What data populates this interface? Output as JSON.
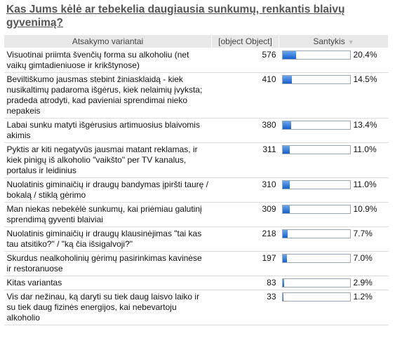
{
  "title": "Kas Jums kėlė ar tebekelia daugiausia sunkumų, renkantis blaivų gyvenimą?",
  "headers": {
    "option": "Atsakymo variantai",
    "count": "[object Object]",
    "ratio": "Santykis"
  },
  "sort_icon": "triangle-down-icon",
  "bar_color": "#1f6fd6",
  "chart_data": {
    "type": "table",
    "columns": [
      "Atsakymo variantai",
      "[object Object]",
      "Santykis"
    ],
    "rows": [
      {
        "label": "Visuotinai priimta švenčių forma su alkoholiu (net vaikų gimtadieniuose ir krikštynose)",
        "count": 576,
        "percent": 20.4,
        "percent_text": "20.4%"
      },
      {
        "label": "Beviltiškumo jausmas stebint žiniasklaidą - kiek nusikaltimų padaroma išgėrus, kiek nelaimių įvyksta; pradeda atrodyti, kad pavieniai sprendimai nieko nepakeis",
        "count": 410,
        "percent": 14.5,
        "percent_text": "14.5%"
      },
      {
        "label": "Labai sunku matyti išgėrusius artimuosius blaivomis akimis",
        "count": 380,
        "percent": 13.4,
        "percent_text": "13.4%"
      },
      {
        "label": "Pyktis ar kiti negatyvūs jausmai matant reklamas, ir kiek pinigų iš alkoholio \"vaikšto\" per TV kanalus, portalus ir leidinius",
        "count": 311,
        "percent": 11.0,
        "percent_text": "11.0%"
      },
      {
        "label": "Nuolatinis giminaičių ir draugų bandymas įpiršti taurę / bokalą / stiklą gėrimo",
        "count": 310,
        "percent": 11.0,
        "percent_text": "11.0%"
      },
      {
        "label": "Man niekas nebekėlė sunkumų, kai priėmiau galutinį sprendimą gyventi blaiviai",
        "count": 309,
        "percent": 10.9,
        "percent_text": "10.9%"
      },
      {
        "label": "Nuolatinis giminaičių ir draugų klausinėjimas \"tai kas tau atsitiko?\" / \"ką čia išsigalvoji?\"",
        "count": 218,
        "percent": 7.7,
        "percent_text": "7.7%"
      },
      {
        "label": "Skurdus nealkoholinių gėrimų pasirinkimas kavinėse ir restoranuose",
        "count": 197,
        "percent": 7.0,
        "percent_text": "7.0%"
      },
      {
        "label": "Kitas variantas",
        "count": 83,
        "percent": 2.9,
        "percent_text": "2.9%"
      },
      {
        "label": "Vis dar nežinau, ką daryti su tiek daug laisvo laiko ir su tiek daug fizinės energijos, kai nebevartoju alkoholio",
        "count": 33,
        "percent": 1.2,
        "percent_text": "1.2%"
      }
    ],
    "bar_max_percent": 100
  }
}
